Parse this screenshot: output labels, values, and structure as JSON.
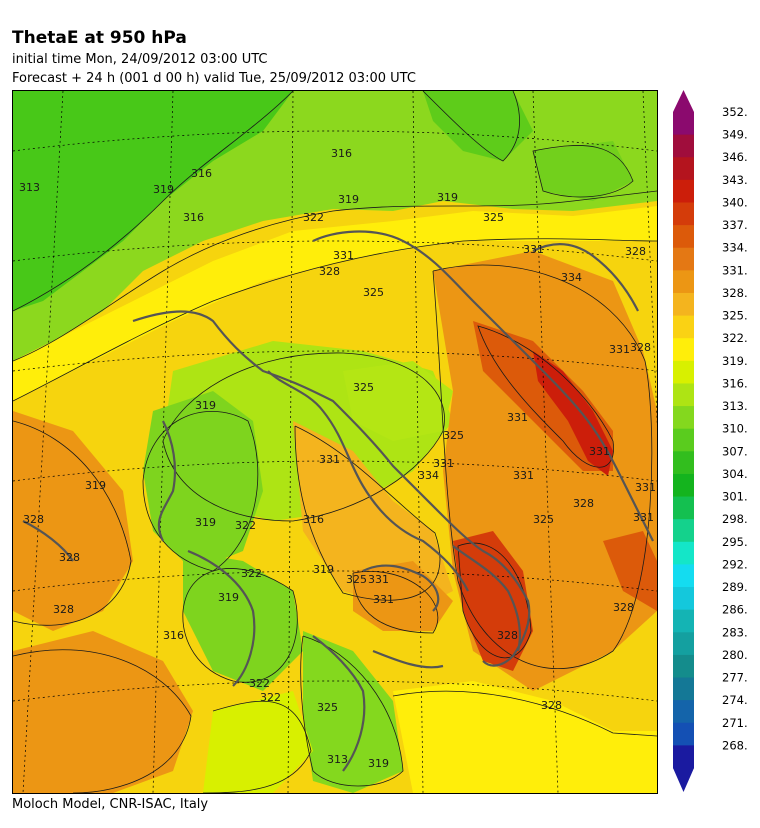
{
  "header": {
    "title": "ThetaE at 950 hPa",
    "initial_time": "initial time  Mon, 24/09/2012  03:00 UTC",
    "forecast": "Forecast  +  24 h  (001 d 00 h)  valid Tue, 25/09/2012 03:00 UTC"
  },
  "footer": "Moloch Model, CNR-ISAC, Italy",
  "colorbar": {
    "ticks": [
      "352.",
      "349.",
      "346.",
      "343.",
      "340.",
      "337.",
      "334.",
      "331.",
      "328.",
      "325.",
      "322.",
      "319.",
      "316.",
      "313.",
      "310.",
      "307.",
      "304.",
      "301.",
      "298.",
      "295.",
      "292.",
      "289.",
      "286.",
      "283.",
      "280.",
      "277.",
      "274.",
      "271.",
      "268."
    ],
    "colors": [
      "#8b0a6e",
      "#a00d3c",
      "#b4141e",
      "#cc1e0a",
      "#d43c0a",
      "#dc5a0a",
      "#e47814",
      "#ec9614",
      "#f4b41e",
      "#fad214",
      "#ffee0a",
      "#d8f000",
      "#aee414",
      "#84d81e",
      "#5acc1e",
      "#32be1e",
      "#14b41e",
      "#14c050",
      "#14d28c",
      "#14e6c8",
      "#14dcf0",
      "#14c8dc",
      "#14b4b4",
      "#14a0a0",
      "#148c8c",
      "#147896",
      "#1464aa",
      "#1450b4",
      "#1a1aa0"
    ],
    "top_arrow_color": "#8b0a6e",
    "bottom_arrow_color": "#1a1aa0"
  },
  "map": {
    "contour_labels": [
      "313",
      "316",
      "316",
      "319",
      "319",
      "316",
      "319",
      "322",
      "325",
      "331",
      "328",
      "331",
      "334",
      "328",
      "325",
      "331",
      "331",
      "328",
      "319",
      "319",
      "322",
      "325",
      "331",
      "319",
      "316",
      "325",
      "319",
      "322",
      "331",
      "331",
      "328",
      "331",
      "328",
      "328",
      "328",
      "325",
      "322",
      "319",
      "313",
      "322",
      "325",
      "316",
      "331",
      "328",
      "319",
      "331",
      "334",
      "328",
      "328",
      "325",
      "331",
      "331"
    ]
  },
  "colors": {
    "coast": "#555555",
    "contour": "#1a1a1a"
  }
}
